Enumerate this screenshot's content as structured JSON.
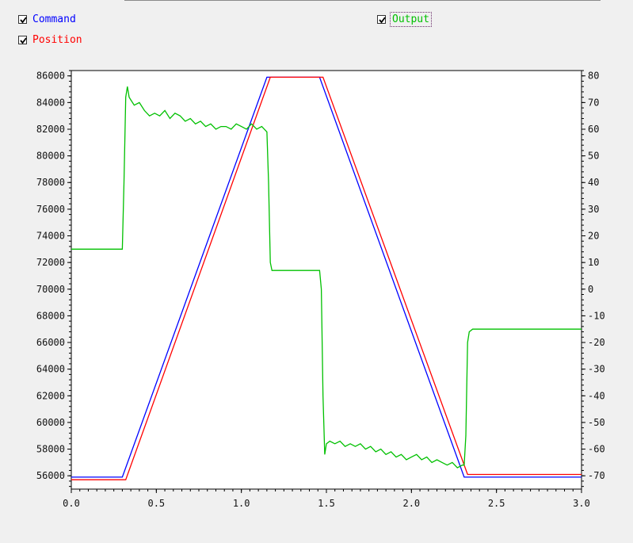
{
  "legend": {
    "command": {
      "label": "Command",
      "checked": true,
      "color": "#0000ff"
    },
    "position": {
      "label": "Position",
      "checked": true,
      "color": "#ff0000"
    },
    "output": {
      "label": "Output",
      "checked": true,
      "color": "#00c000"
    }
  },
  "chart_data": {
    "type": "line",
    "xlim": [
      0.0,
      3.0
    ],
    "ylim_left": [
      55000,
      86400
    ],
    "ylim_right": [
      -75,
      82
    ],
    "x_ticks": [
      "0.0",
      "0.5",
      "1.0",
      "1.5",
      "2.0",
      "2.5",
      "3.0"
    ],
    "y_ticks_left": [
      "56000",
      "58000",
      "60000",
      "62000",
      "64000",
      "66000",
      "68000",
      "70000",
      "72000",
      "74000",
      "76000",
      "78000",
      "80000",
      "82000",
      "84000",
      "86000"
    ],
    "y_ticks_right": [
      "-70",
      "-60",
      "-50",
      "-40",
      "-30",
      "-20",
      "-10",
      "0",
      "10",
      "20",
      "30",
      "40",
      "50",
      "60",
      "70",
      "80"
    ],
    "grid": false,
    "series": [
      {
        "name": "Command",
        "axis": "left",
        "color": "#0000ff",
        "x": [
          0.0,
          0.3,
          1.15,
          1.46,
          2.31,
          3.0
        ],
        "y": [
          55900,
          55900,
          85900,
          85900,
          55900,
          55900
        ]
      },
      {
        "name": "Position",
        "axis": "left",
        "color": "#ff0000",
        "x": [
          0.0,
          0.32,
          1.17,
          1.48,
          2.33,
          3.0
        ],
        "y": [
          55700,
          55700,
          85900,
          85900,
          56100,
          56100
        ]
      },
      {
        "name": "Output",
        "axis": "right",
        "color": "#00c000",
        "x": [
          0.0,
          0.3,
          0.31,
          0.32,
          0.33,
          0.34,
          0.35,
          0.37,
          0.4,
          0.43,
          0.46,
          0.49,
          0.52,
          0.55,
          0.58,
          0.61,
          0.64,
          0.67,
          0.7,
          0.73,
          0.76,
          0.79,
          0.82,
          0.85,
          0.88,
          0.91,
          0.94,
          0.97,
          1.0,
          1.03,
          1.06,
          1.09,
          1.12,
          1.15,
          1.16,
          1.17,
          1.18,
          1.19,
          1.22,
          1.3,
          1.4,
          1.46,
          1.47,
          1.48,
          1.49,
          1.5,
          1.52,
          1.55,
          1.58,
          1.61,
          1.64,
          1.67,
          1.7,
          1.73,
          1.76,
          1.79,
          1.82,
          1.85,
          1.88,
          1.91,
          1.94,
          1.97,
          2.0,
          2.03,
          2.06,
          2.09,
          2.12,
          2.15,
          2.18,
          2.21,
          2.24,
          2.27,
          2.3,
          2.31,
          2.32,
          2.33,
          2.34,
          2.36,
          2.45,
          2.6,
          3.0
        ],
        "y": [
          15,
          15,
          40,
          72,
          76,
          72,
          71,
          69,
          70,
          67,
          65,
          66,
          65,
          67,
          64,
          66,
          65,
          63,
          64,
          62,
          63,
          61,
          62,
          60,
          61,
          61,
          60,
          62,
          61,
          60,
          62,
          60,
          61,
          59,
          40,
          10,
          7,
          7,
          7,
          7,
          7,
          7,
          0,
          -40,
          -62,
          -58,
          -57,
          -58,
          -57,
          -59,
          -58,
          -59,
          -58,
          -60,
          -59,
          -61,
          -60,
          -62,
          -61,
          -63,
          -62,
          -64,
          -63,
          -62,
          -64,
          -63,
          -65,
          -64,
          -65,
          -66,
          -65,
          -67,
          -66,
          -66,
          -55,
          -20,
          -16,
          -15,
          -15,
          -15,
          -15
        ]
      }
    ]
  }
}
